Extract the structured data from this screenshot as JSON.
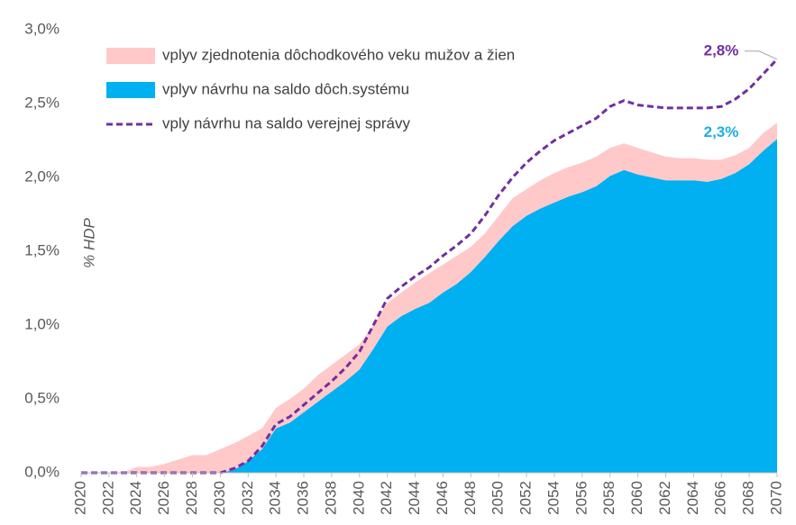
{
  "chart_data": {
    "type": "area",
    "stacked": true,
    "ylabel": "% HDP",
    "x": [
      2020,
      2021,
      2022,
      2023,
      2024,
      2025,
      2026,
      2027,
      2028,
      2029,
      2030,
      2031,
      2032,
      2033,
      2034,
      2035,
      2036,
      2037,
      2038,
      2039,
      2040,
      2041,
      2042,
      2043,
      2044,
      2045,
      2046,
      2047,
      2048,
      2049,
      2050,
      2051,
      2052,
      2053,
      2054,
      2055,
      2056,
      2057,
      2058,
      2059,
      2060,
      2061,
      2062,
      2063,
      2064,
      2065,
      2066,
      2067,
      2068,
      2069,
      2070
    ],
    "xlim": [
      2020,
      2070
    ],
    "xticks": [
      2020,
      2022,
      2024,
      2026,
      2028,
      2030,
      2032,
      2034,
      2036,
      2038,
      2040,
      2042,
      2044,
      2046,
      2048,
      2050,
      2052,
      2054,
      2056,
      2058,
      2060,
      2062,
      2064,
      2066,
      2068,
      2070
    ],
    "ylim": [
      0,
      3
    ],
    "yticks": [
      {
        "value": 0,
        "label": "0,0%"
      },
      {
        "value": 0.5,
        "label": "0,5%"
      },
      {
        "value": 1,
        "label": "1,0%"
      },
      {
        "value": 1.5,
        "label": "1,5%"
      },
      {
        "value": 2,
        "label": "2,0%"
      },
      {
        "value": 2.5,
        "label": "2,5%"
      },
      {
        "value": 3,
        "label": "3,0%"
      }
    ],
    "grid": false,
    "series": [
      {
        "name": "vplyv návrhu na saldo dôch.systému",
        "type": "area",
        "color": "#00b0f0",
        "values": [
          0,
          0,
          0,
          0,
          0,
          0,
          0,
          0,
          0,
          0,
          0,
          0.02,
          0.08,
          0.16,
          0.3,
          0.34,
          0.41,
          0.48,
          0.55,
          0.62,
          0.7,
          0.84,
          0.99,
          1.06,
          1.11,
          1.15,
          1.22,
          1.28,
          1.36,
          1.46,
          1.57,
          1.67,
          1.74,
          1.79,
          1.83,
          1.87,
          1.9,
          1.94,
          2.01,
          2.05,
          2.02,
          2.0,
          1.98,
          1.98,
          1.98,
          1.97,
          1.99,
          2.03,
          2.09,
          2.18,
          2.26
        ],
        "value_labels": [
          null,
          null,
          null,
          null,
          null,
          null,
          null,
          null,
          null,
          null,
          null,
          null,
          null,
          null,
          null,
          null,
          null,
          null,
          null,
          null,
          null,
          null,
          null,
          null,
          null,
          null,
          null,
          null,
          null,
          null,
          null,
          null,
          null,
          null,
          null,
          null,
          null,
          null,
          null,
          null,
          null,
          null,
          null,
          null,
          null,
          null,
          null,
          null,
          null,
          null,
          "2,3%"
        ]
      },
      {
        "name": "vplyv zjednotenia dôchodkového veku mužov a žien",
        "type": "area",
        "color": "#ffc9c9",
        "values": [
          0,
          0,
          0,
          0,
          0.04,
          0.04,
          0.06,
          0.09,
          0.12,
          0.12,
          0.16,
          0.18,
          0.17,
          0.14,
          0.14,
          0.16,
          0.16,
          0.18,
          0.18,
          0.18,
          0.17,
          0.16,
          0.16,
          0.16,
          0.18,
          0.2,
          0.19,
          0.19,
          0.17,
          0.16,
          0.17,
          0.19,
          0.18,
          0.19,
          0.2,
          0.2,
          0.2,
          0.2,
          0.19,
          0.18,
          0.18,
          0.17,
          0.16,
          0.15,
          0.15,
          0.15,
          0.13,
          0.12,
          0.11,
          0.12,
          0.11
        ]
      },
      {
        "name": "vply návrhu na saldo verejnej správy",
        "type": "line",
        "dashed": true,
        "color": "#7030a0",
        "values": [
          0,
          0,
          0,
          0,
          0,
          0,
          0,
          0,
          0,
          0,
          0,
          0.03,
          0.08,
          0.18,
          0.33,
          0.38,
          0.46,
          0.54,
          0.62,
          0.71,
          0.82,
          1.0,
          1.18,
          1.26,
          1.33,
          1.39,
          1.47,
          1.54,
          1.62,
          1.74,
          1.88,
          2.0,
          2.1,
          2.18,
          2.25,
          2.3,
          2.35,
          2.4,
          2.48,
          2.52,
          2.49,
          2.48,
          2.47,
          2.47,
          2.47,
          2.47,
          2.48,
          2.53,
          2.6,
          2.7,
          2.8
        ],
        "value_labels": [
          null,
          null,
          null,
          null,
          null,
          null,
          null,
          null,
          null,
          null,
          null,
          null,
          null,
          null,
          null,
          null,
          null,
          null,
          null,
          null,
          null,
          null,
          null,
          null,
          null,
          null,
          null,
          null,
          null,
          null,
          null,
          null,
          null,
          null,
          null,
          null,
          null,
          null,
          null,
          null,
          null,
          null,
          null,
          null,
          null,
          null,
          null,
          null,
          null,
          null,
          "2,8%"
        ]
      }
    ]
  }
}
